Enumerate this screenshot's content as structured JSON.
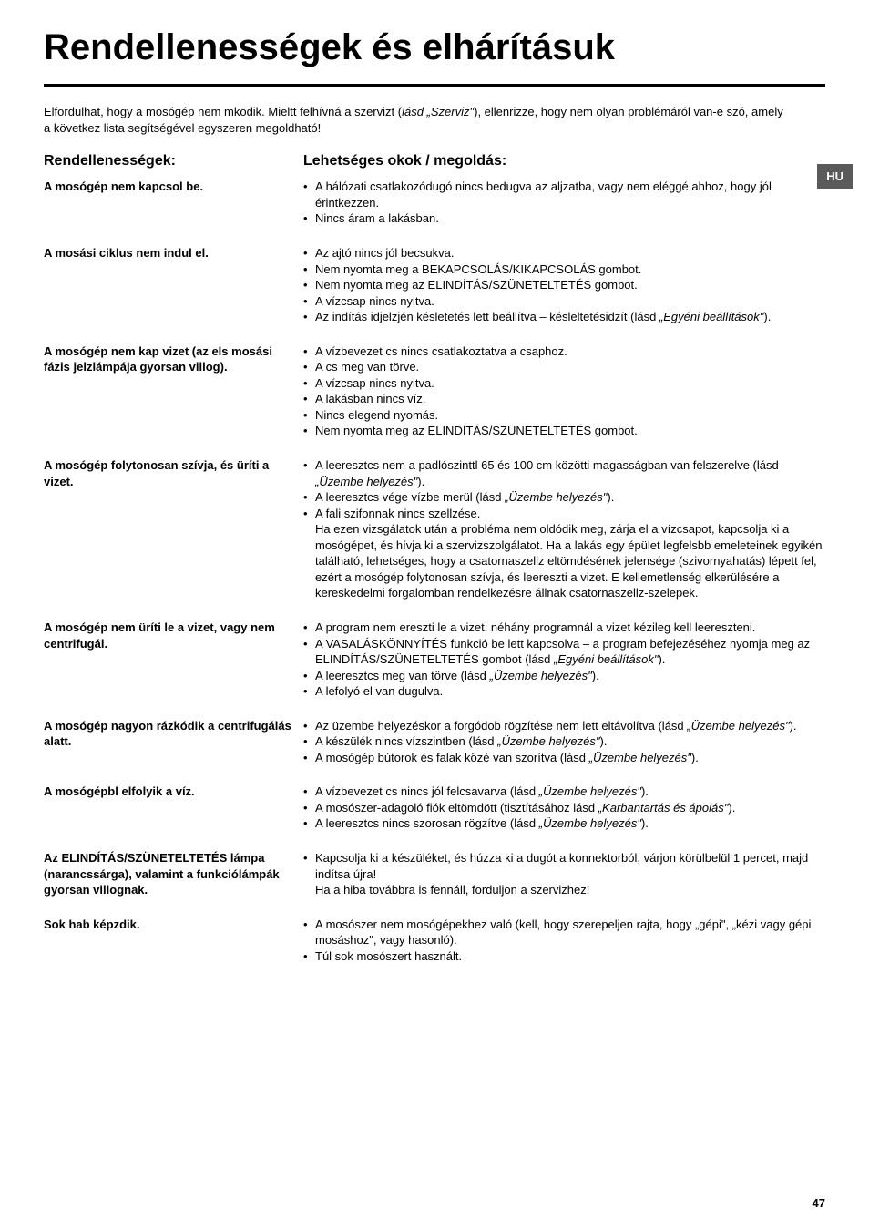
{
  "title": "Rendellenességek és elhárításuk",
  "lang_tab": "HU",
  "intro_html": "Elfordulhat, hogy a mosógép nem mködik. Mieltt felhívná a szervizt (<span class=\"italic\">lásd „Szerviz\"</span>), ellenrizze, hogy nem olyan problémáról van-e szó, amely a következ lista segítségével egyszeren megoldható!",
  "left_header": "Rendellenességek:",
  "right_header": "Lehetséges okok / megoldás:",
  "rows": [
    {
      "label": "A mosógép nem kapcsol be.",
      "items": [
        "A hálózati csatlakozódugó nincs bedugva az aljzatba, vagy nem eléggé ahhoz, hogy jól érintkezzen.",
        "Nincs áram a lakásban."
      ]
    },
    {
      "label": "A mosási ciklus nem indul el.",
      "items": [
        "Az ajtó nincs jól becsukva.",
        "Nem nyomta meg a BEKAPCSOLÁS/KIKAPCSOLÁS gombot.",
        "Nem nyomta meg az ELINDÍTÁS/SZÜNETELTETÉS gombot.",
        "A vízcsap nincs nyitva.",
        "Az indítás idjelzjén késletetés lett beállítva – késleltetésidzít (lásd <span class=\"italic\">„Egyéni beállítások\"</span>)."
      ]
    },
    {
      "label": "A mosógép nem kap vizet (az els mosási fázis jelzlámpája gyorsan villog).",
      "items": [
        "A vízbevezet cs nincs csatlakoztatva a csaphoz.",
        "A cs meg van törve.",
        "A vízcsap nincs nyitva.",
        "A lakásban nincs víz.",
        "Nincs elegend nyomás.",
        "Nem nyomta meg az ELINDÍTÁS/SZÜNETELTETÉS gombot."
      ]
    },
    {
      "label": "A mosógép folytonosan szívja, és üríti a vizet.",
      "items": [
        "A leeresztcs nem a padlószinttl 65 és 100 cm közötti magasságban van felszerelve (lásd <span class=\"italic\">„Üzembe helyezés\"</span>).",
        "A leeresztcs vége vízbe merül (lásd <span class=\"italic\">„Üzembe helyezés\"</span>).",
        "A fali szifonnak nincs szellzése."
      ],
      "note": "Ha ezen vizsgálatok után a probléma nem oldódik meg, zárja el a vízcsapot, kapcsolja ki a mosógépet, és hívja ki a szervizszolgálatot. Ha a lakás egy épület legfelsbb emeleteinek egyikén található, lehetséges, hogy a csatornaszellz eltömdésének jelensége (szivornyahatás) lépett fel, ezért a mosógép folytonosan szívja, és leereszti a vizet. E kellemetlenség elkerülésére a kereskedelmi forgalomban rendelkezésre állnak csatornaszellz-szelepek."
    },
    {
      "label": "A mosógép nem üríti le a vizet, vagy nem centrifugál.",
      "items": [
        "A program nem ereszti le a vizet: néhány programnál a vizet kézileg kell leereszteni.",
        "A VASALÁSKÖNNYÍTÉS funkció be lett kapcsolva – a program befejezéséhez nyomja meg az ELINDÍTÁS/SZÜNETELTETÉS gombot (lásd <span class=\"italic\">„Egyéni beállítások\"</span>).",
        "A leeresztcs meg van törve (lásd <span class=\"italic\">„Üzembe helyezés\"</span>).",
        "A lefolyó el van dugulva."
      ]
    },
    {
      "label": "A mosógép nagyon rázkódik a centrifugálás alatt.",
      "items": [
        "Az üzembe helyezéskor a forgódob rögzítése nem lett eltávolítva (lásd <span class=\"italic\">„Üzembe helyezés\"</span>).",
        "A készülék nincs vízszintben (lásd <span class=\"italic\">„Üzembe helyezés\"</span>).",
        "A mosógép bútorok és falak közé van szorítva (lásd <span class=\"italic\">„Üzembe helyezés\"</span>)."
      ]
    },
    {
      "label": "A mosógépbl elfolyik a víz.",
      "items": [
        "A vízbevezet cs nincs jól felcsavarva (lásd <span class=\"italic\">„Üzembe helyezés\"</span>).",
        "A mosószer-adagoló fiók eltömdött (tisztításához lásd <span class=\"italic\">„Karbantartás és ápolás\"</span>).",
        "A leeresztcs nincs szorosan rögzítve (lásd <span class=\"italic\">„Üzembe helyezés\"</span>)."
      ]
    },
    {
      "label": "Az ELINDÍTÁS/SZÜNETELTETÉS lámpa (narancssárga), valamint a funkciólámpák gyorsan villognak.",
      "items": [
        "Kapcsolja ki a készüléket, és húzza ki a dugót a konnektorból, várjon körülbelül 1 percet, majd indítsa újra!"
      ],
      "note": "Ha a hiba továbbra is fennáll, forduljon a szervizhez!"
    },
    {
      "label": "Sok hab képzdik.",
      "items": [
        "A mosószer nem mosógépekhez való (kell, hogy szerepeljen rajta, hogy „gépi\", „kézi vagy gépi mosáshoz\", vagy hasonló).",
        "Túl sok mosószert használt."
      ]
    }
  ],
  "page_number": "47"
}
